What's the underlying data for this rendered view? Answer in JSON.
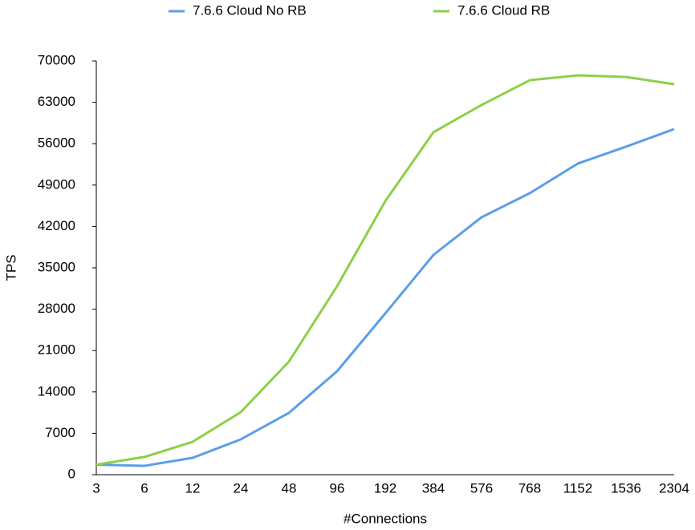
{
  "chart_data": {
    "type": "line",
    "x_label": "#Connections",
    "y_label": "TPS",
    "categories": [
      "3",
      "6",
      "12",
      "24",
      "48",
      "96",
      "192",
      "384",
      "576",
      "768",
      "1152",
      "1536",
      "2304"
    ],
    "series": [
      {
        "name": "7.6.6 Cloud No RB",
        "color": "#5b9ee9",
        "values": [
          1700,
          1500,
          2850,
          5970,
          10450,
          17500,
          27270,
          37170,
          43550,
          47620,
          52640,
          55490,
          58470
        ]
      },
      {
        "name": "7.6.6 Cloud RB",
        "color": "#8cd048",
        "values": [
          1700,
          3000,
          5560,
          10580,
          19130,
          31880,
          46260,
          57930,
          62540,
          66740,
          67560,
          67290,
          66060
        ]
      }
    ],
    "ylim": [
      0,
      70000
    ],
    "yticks": [
      0,
      7000,
      14000,
      21000,
      28000,
      35000,
      42000,
      49000,
      56000,
      63000,
      70000
    ],
    "grid": false,
    "legend": "top"
  }
}
